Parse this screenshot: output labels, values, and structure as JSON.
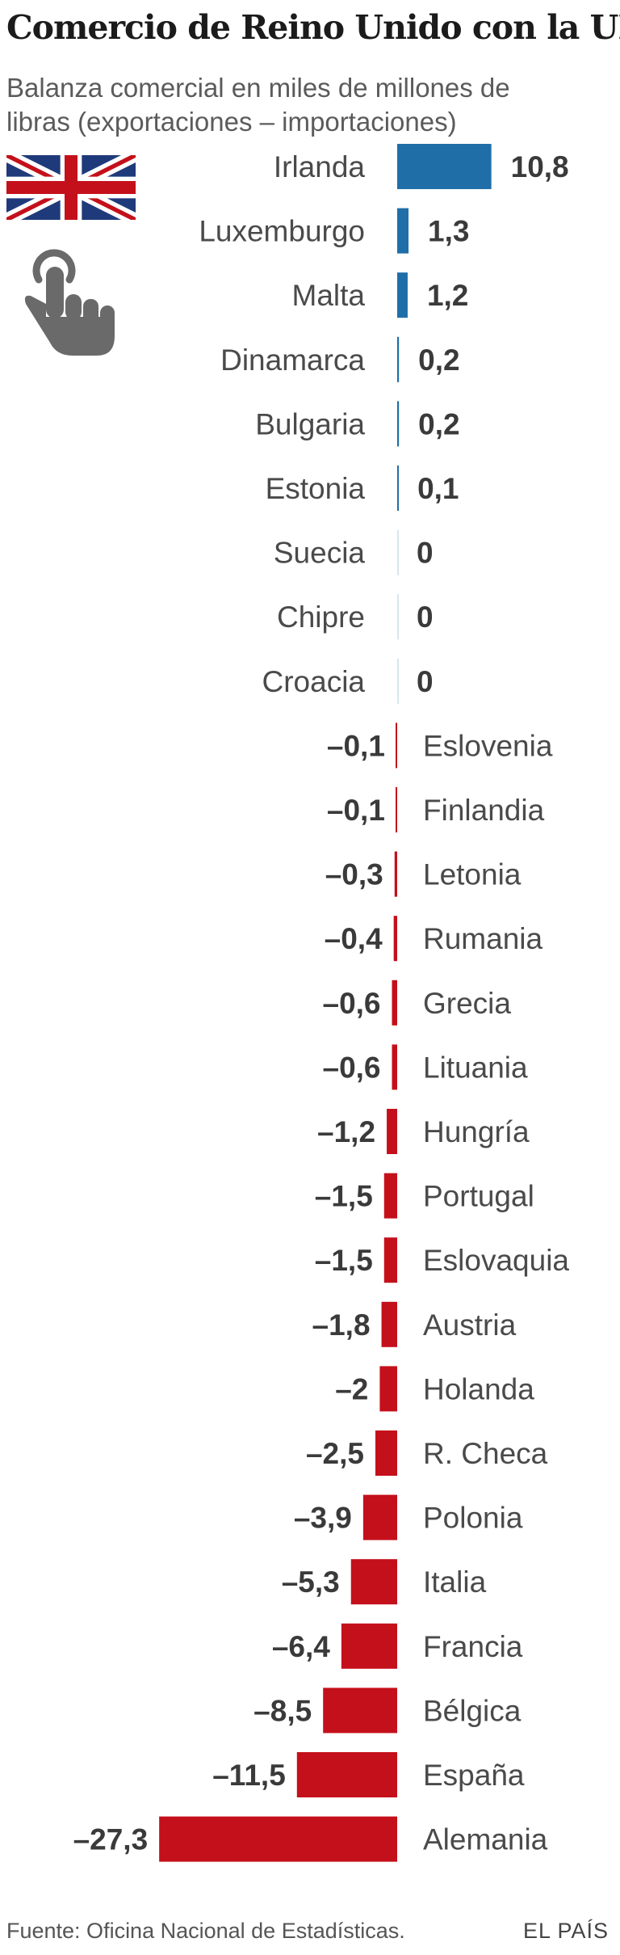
{
  "title": "Comercio de Reino Unido con la UE",
  "subtitle": "Balanza comercial en miles de millones de libras (exportaciones – importaciones)",
  "icons": {
    "flag": "union-jack-flag-icon",
    "pointer": "pointing-hand-icon"
  },
  "colors": {
    "positive": "#1f6ea8",
    "negative": "#c4101b",
    "zero": "#d6e6f0"
  },
  "chart_data": {
    "type": "bar",
    "orientation": "horizontal",
    "categories": [
      "Irlanda",
      "Luxemburgo",
      "Malta",
      "Dinamarca",
      "Bulgaria",
      "Estonia",
      "Suecia",
      "Chipre",
      "Croacia",
      "Eslovenia",
      "Finlandia",
      "Letonia",
      "Rumania",
      "Grecia",
      "Lituania",
      "Hungría",
      "Portugal",
      "Eslovaquia",
      "Austria",
      "Holanda",
      "R. Checa",
      "Polonia",
      "Italia",
      "Francia",
      "Bélgica",
      "España",
      "Alemania"
    ],
    "values": [
      10.8,
      1.3,
      1.2,
      0.2,
      0.2,
      0.1,
      0,
      0,
      0,
      -0.1,
      -0.1,
      -0.3,
      -0.4,
      -0.6,
      -0.6,
      -1.2,
      -1.5,
      -1.5,
      -1.8,
      -2,
      -2.5,
      -3.9,
      -5.3,
      -6.4,
      -8.5,
      -11.5,
      -27.3
    ],
    "labels": [
      "10,8",
      "1,3",
      "1,2",
      "0,2",
      "0,2",
      "0,1",
      "0",
      "0",
      "0",
      "–0,1",
      "–0,1",
      "–0,3",
      "–0,4",
      "–0,6",
      "–0,6",
      "–1,2",
      "–1,5",
      "–1,5",
      "–1,8",
      "–2",
      "–2,5",
      "–3,9",
      "–5,3",
      "–6,4",
      "–8,5",
      "–11,5",
      "–27,3"
    ],
    "title": "Comercio de Reino Unido con la UE",
    "xlabel": "",
    "ylabel": "",
    "xlim": [
      -27.3,
      10.8
    ],
    "grid": false,
    "legend": "none"
  },
  "footer": {
    "source": "Fuente: Oficina Nacional de Estadísticas.",
    "brand": "EL PAÍS"
  }
}
